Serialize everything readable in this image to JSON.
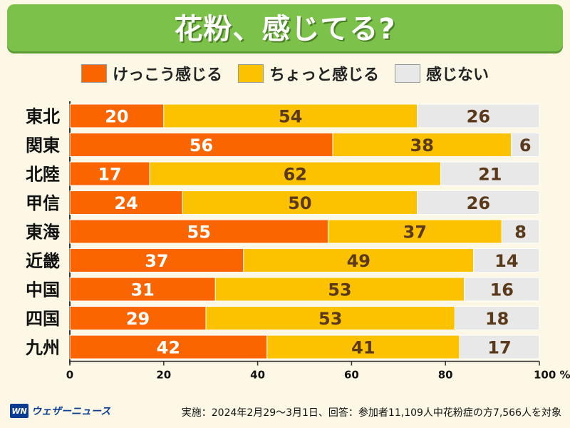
{
  "header": {
    "title": "花粉、感じてる?"
  },
  "colors": {
    "strong": "#fb6500",
    "slight": "#fcc200",
    "none": "#e8e8e8",
    "labelStrong": "#ffffff",
    "labelOther": "#5a3a1a"
  },
  "chart_data": {
    "type": "bar",
    "orientation": "horizontal-stacked",
    "title": "花粉、感じてる?",
    "categories": [
      "東北",
      "関東",
      "北陸",
      "甲信",
      "東海",
      "近畿",
      "中国",
      "四国",
      "九州"
    ],
    "series": [
      {
        "name": "けっこう感じる",
        "values": [
          20,
          56,
          17,
          24,
          55,
          37,
          31,
          29,
          42
        ]
      },
      {
        "name": "ちょっと感じる",
        "values": [
          54,
          38,
          62,
          50,
          37,
          49,
          53,
          53,
          41
        ]
      },
      {
        "name": "感じない",
        "values": [
          26,
          6,
          21,
          26,
          8,
          14,
          16,
          18,
          17
        ]
      }
    ],
    "xlim": [
      0,
      100
    ],
    "xticks": [
      "0",
      "20",
      "40",
      "60",
      "80",
      "100 %"
    ],
    "legend_position": "top"
  },
  "footer": {
    "logo_badge": "WN",
    "logo_text": "ウェザーニュース",
    "note": "実施：2024年2月29〜3月1日、回答：参加者11,109人中花粉症の方7,566人を対象"
  }
}
